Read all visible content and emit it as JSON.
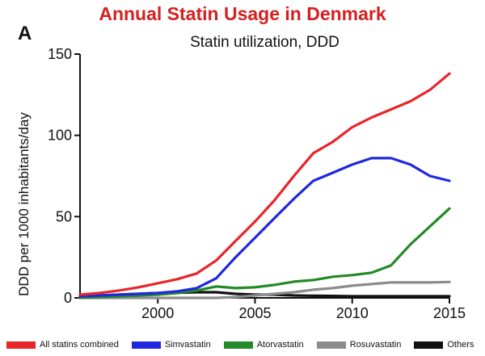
{
  "header": {
    "headline": "Annual Statin Usage in Denmark",
    "headline_color": "#d42020",
    "panel_letter": "A"
  },
  "chart_data": {
    "type": "line",
    "title": "Statin utilization, DDD",
    "xlabel": "",
    "ylabel": "DDD per 1000 inhabitants/day",
    "xlim": [
      1996,
      2015
    ],
    "ylim": [
      0,
      150
    ],
    "x_ticks": [
      2000,
      2005,
      2010,
      2015
    ],
    "y_ticks": [
      0,
      50,
      100,
      150
    ],
    "grid": false,
    "legend_position": "bottom",
    "x": [
      1996,
      1997,
      1998,
      1999,
      2000,
      2001,
      2002,
      2003,
      2004,
      2005,
      2006,
      2007,
      2008,
      2009,
      2010,
      2011,
      2012,
      2013,
      2014,
      2015
    ],
    "series": [
      {
        "name": "All statins combined",
        "color": "#e8252b",
        "values": [
          2,
          3,
          4.5,
          6.5,
          9,
          11.5,
          15,
          23,
          35,
          47,
          60,
          75,
          89,
          96,
          105,
          111,
          116,
          121,
          128,
          138
        ]
      },
      {
        "name": "Simvastatin",
        "color": "#1f28e0",
        "values": [
          1,
          1.5,
          2,
          2.5,
          3,
          4,
          6,
          12,
          25,
          37,
          49,
          61,
          72,
          77,
          82,
          86,
          86,
          82,
          75,
          72
        ]
      },
      {
        "name": "Atorvastatin",
        "color": "#238a25",
        "values": [
          0.2,
          0.5,
          1,
          1.5,
          2,
          3,
          4.5,
          7,
          6,
          6.5,
          8,
          10,
          11,
          13,
          14,
          15.5,
          20,
          33,
          44,
          55
        ]
      },
      {
        "name": "Rosuvastatin",
        "color": "#8c8c8c",
        "values": [
          0,
          0,
          0,
          0,
          0,
          0,
          0,
          0,
          0.5,
          1.5,
          2.5,
          3.5,
          5,
          6,
          7.5,
          8.5,
          9.5,
          9.5,
          9.5,
          9.8
        ]
      },
      {
        "name": "Others",
        "color": "#111111",
        "values": [
          1,
          1.5,
          2,
          2.5,
          3,
          3.2,
          3.5,
          3.5,
          2.5,
          2,
          2,
          1.5,
          1.3,
          1.2,
          1,
          1,
          1,
          1,
          1,
          1
        ]
      }
    ]
  }
}
